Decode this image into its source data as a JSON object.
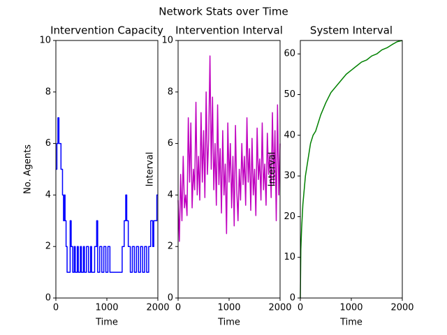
{
  "title": "Network Stats over Time",
  "chart_data": [
    {
      "type": "line",
      "title": "Intervention Capacity",
      "xlabel": "Time",
      "ylabel": "No. Agents",
      "color": "#0000ff",
      "xlim": [
        0,
        2000
      ],
      "ylim": [
        0,
        10
      ],
      "xticks": [
        0,
        1000,
        2000
      ],
      "yticks": [
        0,
        2,
        4,
        6,
        8,
        10
      ],
      "x": [
        0,
        20,
        20,
        40,
        40,
        60,
        60,
        100,
        100,
        130,
        130,
        150,
        150,
        170,
        170,
        180,
        180,
        200,
        200,
        220,
        220,
        280,
        280,
        300,
        300,
        330,
        330,
        360,
        360,
        380,
        380,
        420,
        420,
        440,
        440,
        480,
        480,
        500,
        500,
        540,
        540,
        560,
        560,
        600,
        600,
        640,
        640,
        680,
        680,
        700,
        700,
        760,
        760,
        800,
        800,
        820,
        820,
        860,
        860,
        900,
        900,
        940,
        940,
        980,
        980,
        1020,
        1020,
        1060,
        1060,
        1300,
        1300,
        1340,
        1340,
        1370,
        1370,
        1390,
        1390,
        1420,
        1420,
        1460,
        1460,
        1500,
        1500,
        1540,
        1540,
        1580,
        1580,
        1620,
        1620,
        1660,
        1660,
        1700,
        1700,
        1740,
        1740,
        1780,
        1780,
        1820,
        1820,
        1860,
        1860,
        1900,
        1900,
        1920,
        1920,
        1980,
        1980,
        2000
      ],
      "values": [
        5,
        5,
        6,
        6,
        7,
        7,
        6,
        6,
        5,
        5,
        4,
        4,
        3,
        3,
        4,
        4,
        3,
        3,
        2,
        2,
        1,
        1,
        3,
        3,
        2,
        2,
        1,
        1,
        2,
        2,
        1,
        1,
        2,
        2,
        1,
        1,
        2,
        2,
        1,
        1,
        2,
        2,
        1,
        1,
        2,
        2,
        1,
        1,
        2,
        2,
        1,
        1,
        2,
        2,
        3,
        3,
        1,
        1,
        2,
        2,
        1,
        1,
        2,
        2,
        1,
        1,
        2,
        2,
        1,
        1,
        2,
        2,
        3,
        3,
        4,
        4,
        3,
        3,
        2,
        2,
        1,
        1,
        2,
        2,
        1,
        1,
        2,
        2,
        1,
        1,
        2,
        2,
        1,
        1,
        2,
        2,
        1,
        1,
        2,
        2,
        3,
        3,
        2,
        2,
        3,
        3,
        4,
        4
      ]
    },
    {
      "type": "line",
      "title": "Intervention Interval",
      "xlabel": "Time",
      "ylabel": "Interval",
      "color": "#bf00bf",
      "xlim": [
        0,
        2000
      ],
      "ylim": [
        0,
        10
      ],
      "xticks": [
        0,
        1000,
        2000
      ],
      "yticks": [
        0,
        2,
        4,
        6,
        8,
        10
      ],
      "x": [
        0,
        25,
        50,
        75,
        100,
        125,
        150,
        175,
        200,
        225,
        250,
        275,
        300,
        325,
        350,
        375,
        400,
        425,
        450,
        475,
        500,
        525,
        550,
        575,
        600,
        625,
        650,
        675,
        700,
        725,
        750,
        775,
        800,
        825,
        850,
        875,
        900,
        925,
        950,
        975,
        1000,
        1025,
        1050,
        1075,
        1100,
        1125,
        1150,
        1175,
        1200,
        1225,
        1250,
        1275,
        1300,
        1325,
        1350,
        1375,
        1400,
        1425,
        1450,
        1475,
        1500,
        1525,
        1550,
        1575,
        1600,
        1625,
        1650,
        1675,
        1700,
        1725,
        1750,
        1775,
        1800,
        1825,
        1850,
        1875,
        1900,
        1925,
        1950,
        1975,
        2000
      ],
      "values": [
        3.8,
        2.2,
        4.8,
        3.0,
        5.5,
        3.5,
        4.0,
        3.2,
        7.0,
        4.5,
        6.8,
        3.5,
        5.0,
        4.2,
        7.6,
        4.0,
        5.5,
        3.8,
        7.2,
        4.5,
        6.5,
        3.9,
        8.0,
        4.8,
        6.2,
        9.4,
        5.0,
        7.8,
        4.2,
        6.0,
        3.6,
        7.5,
        4.4,
        5.8,
        3.3,
        6.5,
        4.0,
        5.2,
        2.5,
        6.8,
        4.5,
        6.0,
        3.5,
        5.5,
        2.8,
        6.7,
        4.2,
        3.0,
        5.0,
        3.8,
        6.0,
        4.4,
        5.5,
        3.6,
        7.0,
        4.5,
        5.8,
        3.4,
        6.2,
        4.0,
        5.0,
        3.2,
        6.6,
        4.6,
        5.4,
        3.8,
        6.8,
        4.2,
        5.2,
        3.6,
        6.4,
        4.8,
        5.6,
        3.9,
        7.2,
        4.4,
        6.5,
        3.0,
        7.5,
        4.0,
        6.0
      ]
    },
    {
      "type": "line",
      "title": "System Interval",
      "xlabel": "Time",
      "ylabel": "Interval",
      "color": "#008000",
      "xlim": [
        0,
        2000
      ],
      "ylim": [
        0,
        63.3
      ],
      "xticks": [
        0,
        1000,
        2000
      ],
      "yticks": [
        0,
        10,
        20,
        30,
        40,
        50,
        60
      ],
      "x": [
        0,
        10,
        25,
        50,
        100,
        150,
        200,
        250,
        300,
        400,
        500,
        600,
        700,
        800,
        900,
        1000,
        1100,
        1200,
        1300,
        1400,
        1500,
        1600,
        1700,
        1800,
        1900,
        2000
      ],
      "values": [
        0,
        12,
        17,
        23,
        30,
        34,
        38,
        40,
        41,
        45,
        48,
        50.5,
        52,
        53.5,
        55,
        56,
        57,
        58,
        58.5,
        59.5,
        60,
        61,
        61.5,
        62.3,
        63,
        63.3
      ]
    }
  ]
}
